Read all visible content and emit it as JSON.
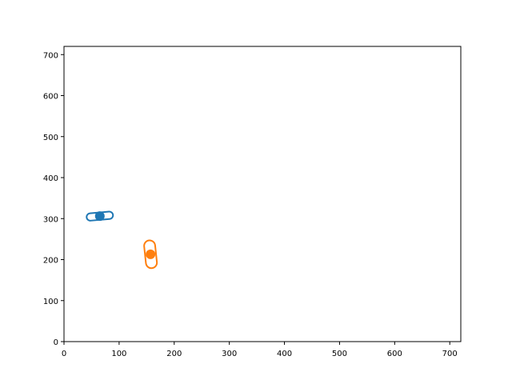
{
  "chart_data": {
    "type": "scatter",
    "title": "",
    "xlabel": "",
    "ylabel": "",
    "xlim": [
      0,
      720
    ],
    "ylim": [
      0,
      720
    ],
    "xticks": [
      0,
      100,
      200,
      300,
      400,
      500,
      600,
      700
    ],
    "yticks": [
      0,
      100,
      200,
      300,
      400,
      500,
      600,
      700
    ],
    "xtick_labels": [
      "0",
      "100",
      "200",
      "300",
      "400",
      "500",
      "600",
      "700"
    ],
    "ytick_labels": [
      "0",
      "100",
      "200",
      "300",
      "400",
      "500",
      "600",
      "700"
    ],
    "grid": false,
    "legend": "none",
    "series": [
      {
        "color": "#1f77b4",
        "points": [
          {
            "x": 65,
            "y": 306
          }
        ],
        "ellipse": {
          "cx": 65,
          "cy": 306,
          "width": 48,
          "height": 18,
          "angle_deg": 5
        }
      },
      {
        "color": "#ff7f0e",
        "points": [
          {
            "x": 157,
            "y": 213
          }
        ],
        "ellipse": {
          "cx": 157,
          "cy": 213,
          "width": 20,
          "height": 68,
          "angle_deg": 6
        }
      }
    ]
  }
}
